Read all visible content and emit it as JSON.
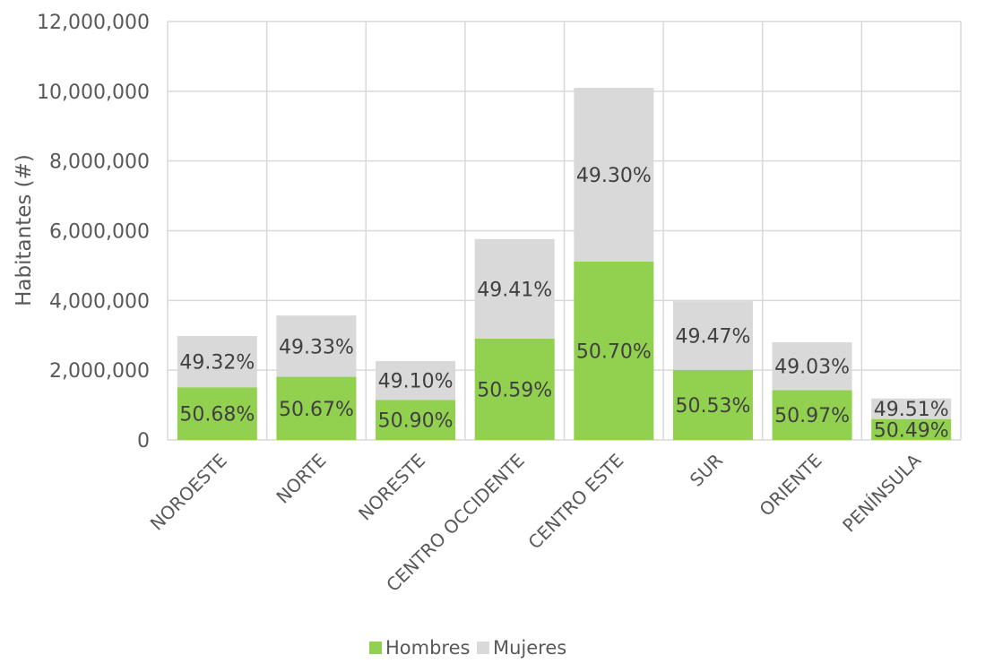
{
  "chart_data": {
    "type": "bar",
    "stacked": true,
    "title": "",
    "xlabel": "",
    "ylabel": "Habitantes (#)",
    "ylim": [
      0,
      12000000
    ],
    "yticks": [
      0,
      2000000,
      4000000,
      6000000,
      8000000,
      10000000,
      12000000
    ],
    "ytick_labels": [
      "0",
      "2,000,000",
      "4,000,000",
      "6,000,000",
      "8,000,000",
      "10,000,000",
      "12,000,000"
    ],
    "grid": true,
    "legend_position": "bottom",
    "categories": [
      "NOROESTE",
      "NORTE",
      "NORESTE",
      "CENTRO OCCIDENTE",
      "CENTRO ESTE",
      "SUR",
      "ORIENTE",
      "PENÍNSULA"
    ],
    "series": [
      {
        "name": "Hombres",
        "color": "#92d050",
        "values": [
          1510000,
          1810000,
          1150000,
          2910000,
          5120000,
          2010000,
          1430000,
          600000
        ],
        "labels": [
          "50.68%",
          "50.67%",
          "50.90%",
          "50.59%",
          "50.70%",
          "50.53%",
          "50.97%",
          "50.49%"
        ]
      },
      {
        "name": "Mujeres",
        "color": "#d9d9d9",
        "values": [
          1470000,
          1760000,
          1110000,
          2850000,
          4980000,
          1970000,
          1370000,
          590000
        ],
        "labels": [
          "49.32%",
          "49.33%",
          "49.10%",
          "49.41%",
          "49.30%",
          "49.47%",
          "49.03%",
          "49.51%"
        ]
      }
    ]
  }
}
